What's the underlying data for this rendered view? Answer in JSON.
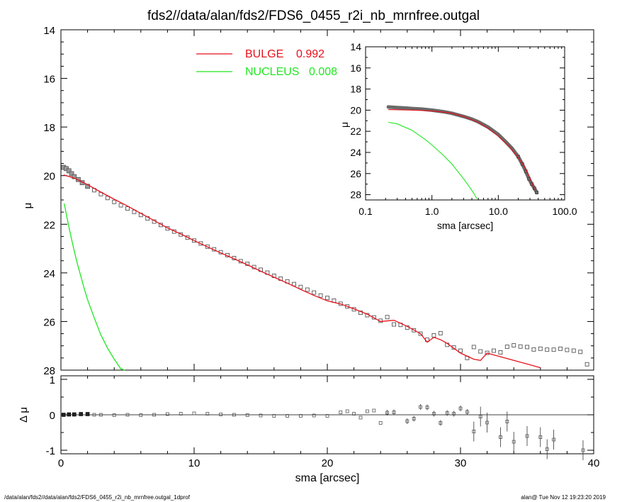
{
  "title": "fds2//data/alan/fds2/FDS6_0455_r2i_nb_mrnfree.outgal",
  "footer": {
    "left": "/data/alan/fds2//data/alan/fds2/FDS6_0455_r2i_nb_mrnfree.outgal_1dprof",
    "right": "alan@  Tue Nov 12 19:23:20 2019"
  },
  "colors": {
    "data": "#7f7f7f",
    "bulge": "#e8101a",
    "nucleus": "#1ee81e",
    "axis": "#000000"
  },
  "chart_data": [
    {
      "id": "main",
      "type": "scatter",
      "title": "fds2//data/alan/fds2/FDS6_0455_r2i_nb_mrnfree.outgal",
      "xlabel": "",
      "ylabel": "μ",
      "xlim": [
        0,
        40
      ],
      "ylim": [
        28,
        14
      ],
      "xticks": [
        "0",
        "10",
        "20",
        "30",
        "40"
      ],
      "yticks": [
        "14",
        "16",
        "18",
        "20",
        "22",
        "24",
        "26",
        "28"
      ],
      "legend": [
        {
          "name": "BULGE",
          "value": "0.992",
          "color": "#e8101a"
        },
        {
          "name": "NUCLEUS",
          "value": "0.008",
          "color": "#1ee81e"
        }
      ],
      "series": [
        {
          "name": "data",
          "x": [
            0.2,
            0.4,
            0.6,
            0.8,
            1.0,
            1.3,
            1.6,
            2.0,
            2.5,
            3.0,
            3.5,
            4.0,
            4.5,
            5.0,
            5.5,
            6.0,
            6.5,
            7.0,
            7.5,
            8.0,
            8.5,
            9.0,
            9.5,
            10.0,
            10.5,
            11.0,
            11.5,
            12.0,
            12.5,
            13.0,
            13.5,
            14.0,
            14.5,
            15.0,
            15.5,
            16.0,
            16.5,
            17.0,
            17.5,
            18.0,
            18.5,
            19.0,
            19.5,
            20.0,
            20.5,
            21.0,
            21.5,
            22.0,
            22.5,
            23.0,
            23.5,
            24.0,
            24.5,
            25.0,
            25.5,
            26.0,
            26.5,
            27.0,
            27.5,
            28.0,
            28.5,
            29.0,
            29.5,
            30.0,
            30.5,
            31.0,
            31.5,
            32.0,
            32.5,
            33.0,
            33.5,
            34.0,
            34.5,
            35.0,
            35.5,
            36.0,
            36.5,
            37.0,
            37.5,
            38.0,
            38.5,
            39.0,
            39.5
          ],
          "y": [
            19.66,
            19.71,
            19.8,
            19.92,
            20.04,
            20.16,
            20.29,
            20.44,
            20.6,
            20.76,
            20.92,
            21.08,
            21.22,
            21.35,
            21.49,
            21.62,
            21.76,
            21.89,
            22.03,
            22.17,
            22.3,
            22.42,
            22.55,
            22.67,
            22.79,
            22.92,
            23.03,
            23.15,
            23.27,
            23.39,
            23.52,
            23.63,
            23.76,
            23.87,
            23.99,
            24.12,
            24.24,
            24.35,
            24.46,
            24.58,
            24.69,
            24.81,
            24.93,
            25.03,
            25.14,
            25.27,
            25.38,
            25.5,
            25.64,
            25.74,
            25.83,
            25.97,
            25.82,
            26.12,
            26.14,
            26.25,
            26.36,
            26.5,
            26.75,
            26.57,
            26.48,
            26.96,
            27.07,
            27.2,
            27.5,
            27.05,
            27.23,
            27.29,
            27.2,
            27.27,
            27.04,
            26.98,
            27.03,
            27.05,
            27.15,
            27.12,
            27.16,
            27.16,
            27.12,
            27.17,
            27.2,
            27.25,
            27.76
          ]
        },
        {
          "name": "BULGE",
          "x": [
            0.2,
            1,
            2,
            3,
            4,
            5,
            6,
            7,
            8,
            9,
            10,
            11,
            12,
            13,
            14,
            15,
            16,
            17,
            18,
            19,
            20,
            21,
            22,
            23,
            24,
            25,
            26,
            27,
            27.5,
            28,
            28.5,
            29,
            30,
            31,
            31.5,
            32,
            33,
            34,
            35,
            36
          ],
          "y": [
            19.97,
            20.1,
            20.37,
            20.68,
            20.97,
            21.25,
            21.55,
            21.85,
            22.15,
            22.4,
            22.67,
            22.93,
            23.18,
            23.42,
            23.67,
            23.93,
            24.18,
            24.42,
            24.68,
            24.93,
            25.15,
            25.28,
            25.48,
            25.7,
            26.0,
            25.95,
            26.2,
            26.5,
            26.85,
            26.65,
            26.75,
            26.9,
            27.3,
            27.55,
            27.6,
            27.3,
            27.45,
            27.6,
            27.75,
            27.9
          ]
        },
        {
          "name": "NUCLEUS",
          "x": [
            0.25,
            0.5,
            0.75,
            1.0,
            1.25,
            1.5,
            1.75,
            2.0,
            2.5,
            3.0,
            3.5,
            4.0,
            4.5,
            4.8
          ],
          "y": [
            21.15,
            21.85,
            22.5,
            23.1,
            23.65,
            24.15,
            24.65,
            25.1,
            25.85,
            26.55,
            27.1,
            27.55,
            27.95,
            28.0
          ]
        }
      ]
    },
    {
      "id": "residuals",
      "type": "scatter",
      "xlabel": "sma [arcsec]",
      "ylabel": "Δ μ",
      "xlim": [
        0,
        40
      ],
      "ylim": [
        -1.1,
        1.1
      ],
      "xticks": [
        "0",
        "10",
        "20",
        "30",
        "40"
      ],
      "yticks": [
        "1",
        "0",
        "-1"
      ],
      "series": [
        {
          "name": "residuals",
          "x": [
            0.2,
            0.6,
            1.0,
            1.5,
            2.0,
            2.5,
            3.0,
            4.0,
            5.0,
            6.0,
            7.0,
            8.0,
            9.0,
            10,
            11,
            12,
            13,
            14,
            15,
            16,
            17,
            18,
            19,
            20,
            21,
            21.5,
            22,
            22.5,
            23,
            23.5,
            24,
            24.5,
            25,
            26,
            26.5,
            27,
            27.5,
            28,
            28.5,
            29,
            29.5,
            30,
            30.5,
            31,
            31.5,
            32,
            33,
            33.5,
            34,
            35,
            36,
            36.5,
            37,
            39.2
          ],
          "y": [
            0.0,
            0.01,
            0.01,
            0.02,
            0.02,
            0.0,
            0.0,
            -0.01,
            0.0,
            -0.01,
            0.0,
            0.02,
            0.03,
            0.04,
            0.03,
            0.01,
            0.0,
            -0.01,
            -0.02,
            -0.03,
            -0.03,
            -0.03,
            -0.02,
            -0.03,
            0.07,
            0.1,
            0.03,
            -0.08,
            0.1,
            0.12,
            -0.23,
            0.06,
            0.07,
            -0.18,
            -0.11,
            0.22,
            0.21,
            0.03,
            -0.23,
            0.05,
            0.03,
            0.18,
            0.08,
            -0.47,
            -0.05,
            -0.22,
            -0.63,
            -0.19,
            -0.76,
            -0.6,
            -0.63,
            -0.97,
            -0.7,
            -1.0
          ]
        }
      ]
    },
    {
      "id": "inset",
      "type": "scatter",
      "xlabel": "sma [arcsec]",
      "ylabel": "μ",
      "xscale": "log",
      "xlim": [
        0.1,
        100
      ],
      "ylim": [
        28.5,
        14
      ],
      "xticks": [
        "0.1",
        "1.0",
        "10.0",
        "100.0"
      ],
      "yticks": [
        "14",
        "16",
        "18",
        "20",
        "22",
        "24",
        "26",
        "28"
      ],
      "series": [
        {
          "name": "data",
          "x": [
            0.22,
            0.3,
            0.4,
            0.5,
            0.7,
            1.0,
            1.5,
            2.0,
            3.0,
            4.0,
            5.0,
            7.0,
            10,
            13,
            16,
            20,
            23,
            26,
            29,
            32,
            35,
            38
          ],
          "y": [
            19.7,
            19.75,
            19.8,
            19.85,
            19.9,
            20.0,
            20.15,
            20.3,
            20.6,
            20.85,
            21.1,
            21.6,
            22.3,
            23.0,
            23.6,
            24.4,
            25.1,
            25.8,
            26.5,
            27.0,
            27.4,
            27.8
          ]
        },
        {
          "name": "BULGE",
          "x": [
            0.22,
            0.4,
            0.7,
            1.0,
            1.5,
            2.0,
            3.0,
            5.0,
            7.0,
            10,
            15,
            20,
            25,
            30,
            35
          ],
          "y": [
            19.95,
            19.98,
            20.02,
            20.08,
            20.18,
            20.3,
            20.6,
            21.15,
            21.7,
            22.45,
            23.5,
            24.5,
            25.4,
            26.4,
            27.5
          ]
        },
        {
          "name": "NUCLEUS",
          "x": [
            0.22,
            0.3,
            0.5,
            0.8,
            1.0,
            1.5,
            2.0,
            3.0,
            4.0,
            4.8
          ],
          "y": [
            21.15,
            21.3,
            21.9,
            22.8,
            23.3,
            24.3,
            25.1,
            26.5,
            27.6,
            28.4
          ]
        }
      ]
    }
  ]
}
